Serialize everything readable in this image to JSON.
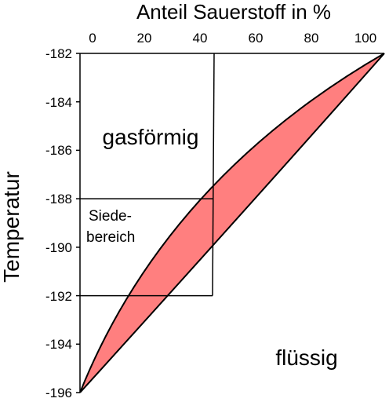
{
  "diagram": {
    "x_axis": {
      "title": "Anteil Sauerstoff in %",
      "ticks": [
        "0",
        "20",
        "40",
        "60",
        "80",
        "100"
      ]
    },
    "y_axis": {
      "title": "Temperatur",
      "ticks": [
        "-182",
        "-184",
        "-186",
        "-188",
        "-190",
        "-192",
        "-194",
        "-196"
      ]
    },
    "regions": {
      "gas": "gasförmig",
      "liquid": "flüssig",
      "boiling_line1": "Siede-",
      "boiling_line2": "bereich"
    },
    "colors": {
      "two_phase_fill": "#ff7f7f",
      "lines": "#000000"
    }
  }
}
